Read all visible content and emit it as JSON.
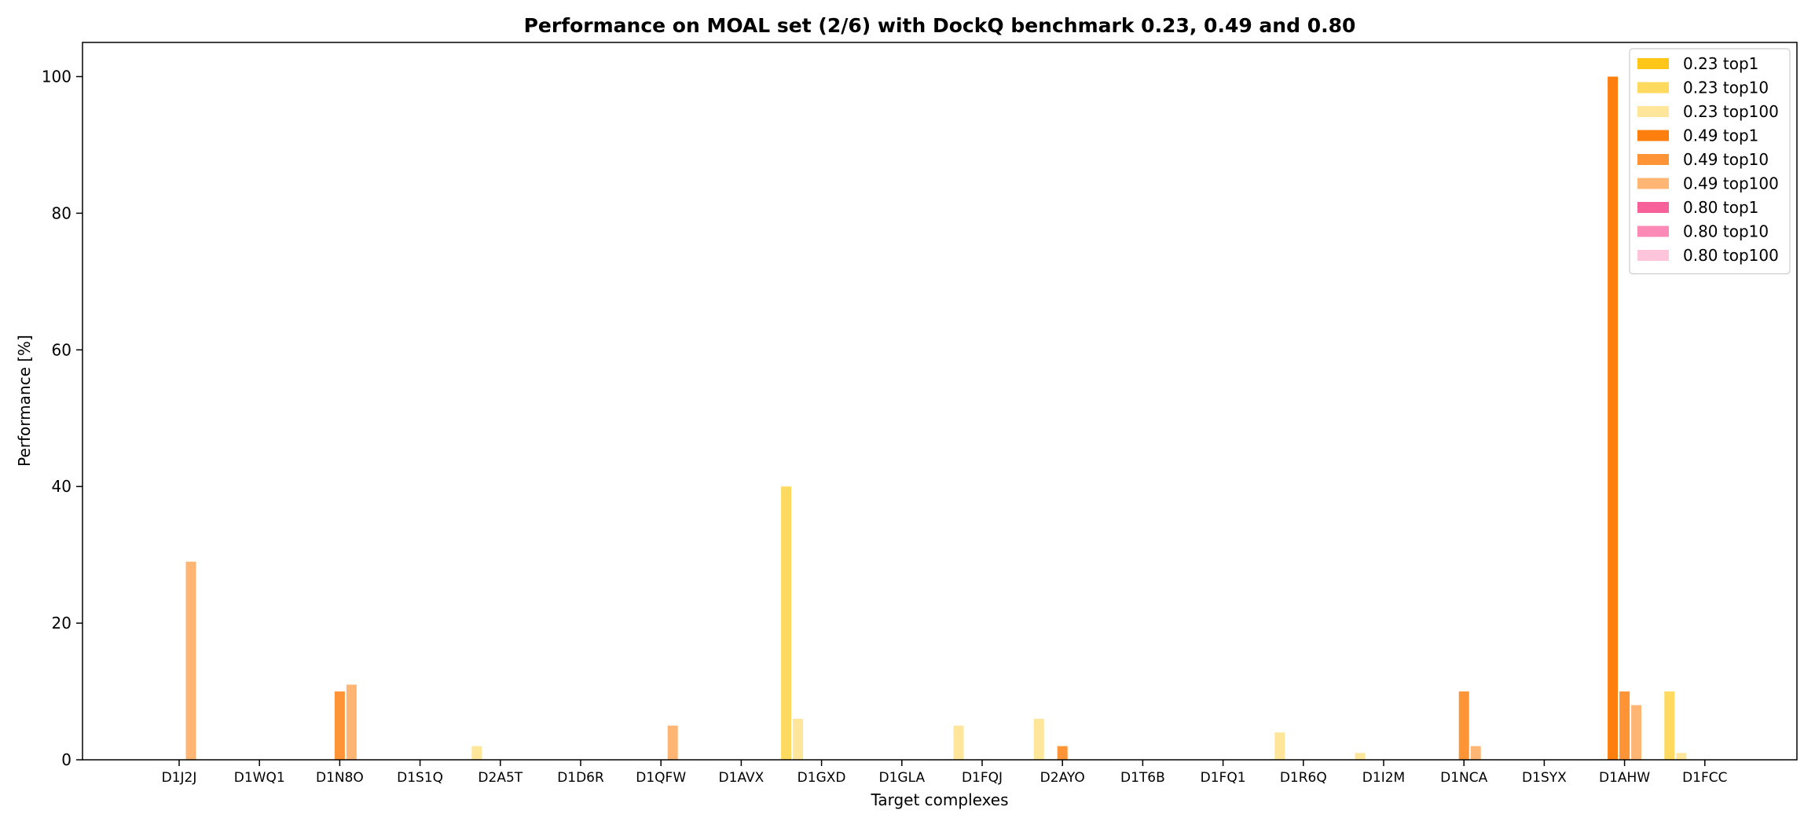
{
  "chart_data": {
    "type": "bar",
    "title": "Performance on MOAL set (2/6) with DockQ benchmark 0.23, 0.49 and 0.80",
    "xlabel": "Target complexes",
    "ylabel": "Performance [%]",
    "ylim": [
      0,
      105
    ],
    "yticks": [
      0,
      20,
      40,
      60,
      80,
      100
    ],
    "grid": false,
    "legend_position": "top-right",
    "categories": [
      "D1J2J",
      "D1WQ1",
      "D1N8O",
      "D1S1Q",
      "D2A5T",
      "D1D6R",
      "D1QFW",
      "D1AVX",
      "D1GXD",
      "D1GLA",
      "D1FQJ",
      "D2AYO",
      "D1T6B",
      "D1FQ1",
      "D1R6Q",
      "D1I2M",
      "D1NCA",
      "D1SYX",
      "D1AHW",
      "D1FCC"
    ],
    "series": [
      {
        "name": "0.23 top1",
        "color": "#FFC61A",
        "values": [
          0,
          0,
          0,
          0,
          0,
          0,
          0,
          0,
          0,
          0,
          0,
          0,
          0,
          0,
          0,
          0,
          0,
          0,
          0,
          0
        ]
      },
      {
        "name": "0.23 top10",
        "color": "#FFDA5E",
        "values": [
          0,
          0,
          0,
          0,
          0,
          0,
          0,
          0,
          40,
          0,
          0,
          0,
          0,
          0,
          0,
          0,
          0,
          0,
          0,
          10
        ]
      },
      {
        "name": "0.23 top100",
        "color": "#FFE69A",
        "values": [
          0,
          0,
          0,
          0,
          2,
          0,
          0,
          0,
          6,
          0,
          5,
          6,
          0,
          0,
          4,
          1,
          0,
          0,
          0,
          1
        ]
      },
      {
        "name": "0.49 top1",
        "color": "#FF7F0E",
        "values": [
          0,
          0,
          0,
          0,
          0,
          0,
          0,
          0,
          0,
          0,
          0,
          0,
          0,
          0,
          0,
          0,
          0,
          0,
          100,
          0
        ]
      },
      {
        "name": "0.49 top10",
        "color": "#FF9436",
        "values": [
          0,
          0,
          10,
          0,
          0,
          0,
          0,
          0,
          0,
          0,
          0,
          2,
          0,
          0,
          0,
          0,
          10,
          0,
          10,
          0
        ]
      },
      {
        "name": "0.49 top100",
        "color": "#FFB574",
        "values": [
          29,
          0,
          11,
          0,
          0,
          0,
          5,
          0,
          0,
          0,
          0,
          0,
          0,
          0,
          0,
          0,
          2,
          0,
          8,
          0
        ]
      },
      {
        "name": "0.80 top1",
        "color": "#F7619A",
        "values": [
          0,
          0,
          0,
          0,
          0,
          0,
          0,
          0,
          0,
          0,
          0,
          0,
          0,
          0,
          0,
          0,
          0,
          0,
          0,
          0
        ]
      },
      {
        "name": "0.80 top10",
        "color": "#FB8AB6",
        "values": [
          0,
          0,
          0,
          0,
          0,
          0,
          0,
          0,
          0,
          0,
          0,
          0,
          0,
          0,
          0,
          0,
          0,
          0,
          0,
          0
        ]
      },
      {
        "name": "0.80 top100",
        "color": "#FDC4DA",
        "values": [
          0,
          0,
          0,
          0,
          0,
          0,
          0,
          0,
          0,
          0,
          0,
          0,
          0,
          0,
          0,
          0,
          0,
          0,
          0,
          0
        ]
      }
    ]
  }
}
